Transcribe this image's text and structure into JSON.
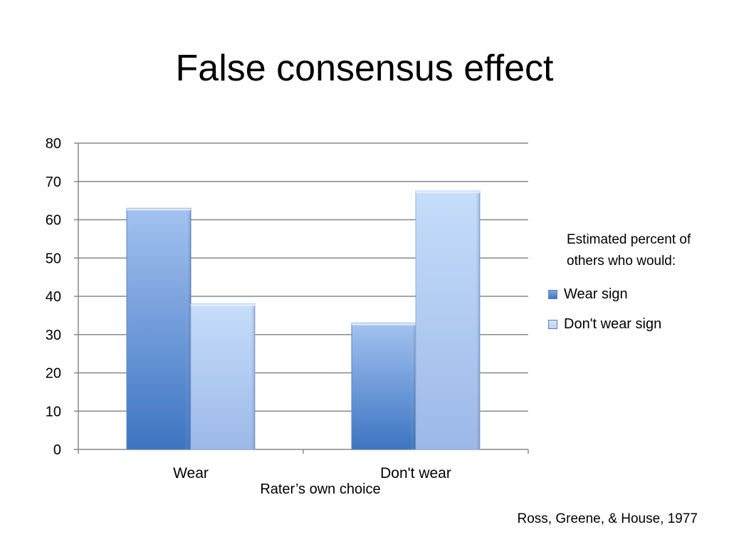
{
  "slide": {
    "title": "False consensus effect",
    "citation": "Ross, Greene, & House, 1977"
  },
  "chart_data": {
    "type": "bar",
    "title": "",
    "xlabel": "Rater’s own choice",
    "ylabel": "",
    "categories": [
      "Wear",
      "Don't wear"
    ],
    "series": [
      {
        "name": "Wear sign",
        "values": [
          63,
          33
        ],
        "color": "#3f78c4"
      },
      {
        "name": "Don't wear sign",
        "values": [
          38,
          67.5
        ],
        "color": "#b9d3f5"
      }
    ],
    "ylim": [
      0,
      80
    ],
    "yticks": [
      0,
      10,
      20,
      30,
      40,
      50,
      60,
      70,
      80
    ],
    "grid": true,
    "legend": {
      "title": "Estimated percent of others who would:",
      "position": "right"
    }
  }
}
